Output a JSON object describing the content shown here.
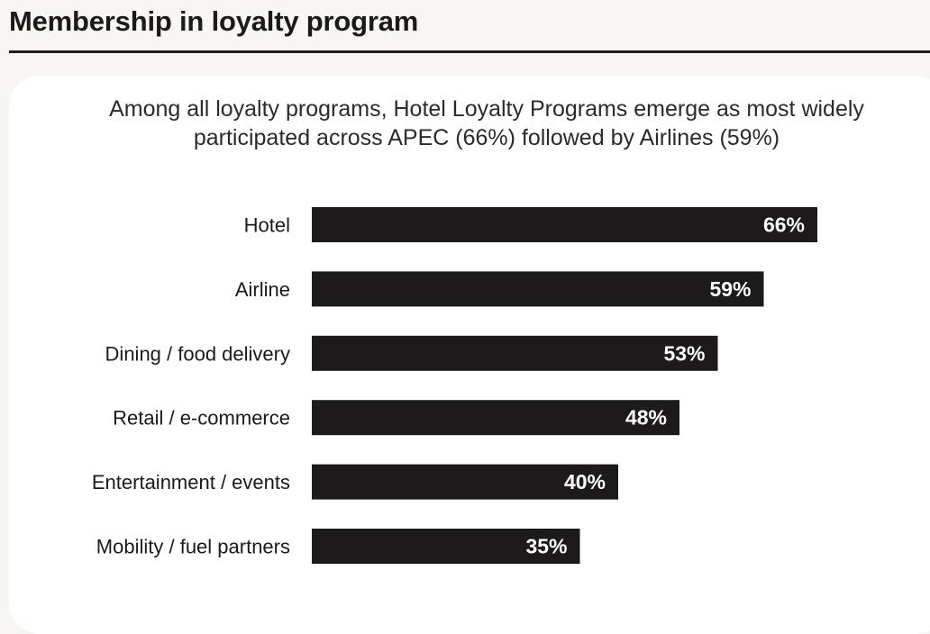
{
  "header": {
    "title": "Membership in loyalty program"
  },
  "chart_data": {
    "type": "bar",
    "orientation": "horizontal",
    "subtitle_lines": [
      "Among all loyalty programs, Hotel Loyalty Programs emerge as most widely",
      "participated across APEC (66%) followed by Airlines (59%)"
    ],
    "categories": [
      "Hotel",
      "Airline",
      "Dining / food delivery",
      "Retail / e-commerce",
      "Entertainment / events",
      "Mobility / fuel partners"
    ],
    "values": [
      66,
      59,
      53,
      48,
      40,
      35
    ],
    "value_labels": [
      "66%",
      "59%",
      "53%",
      "48%",
      "40%",
      "35%"
    ],
    "bar_color": "#1c1a1a",
    "label_color": "#ffffff",
    "grid": false,
    "legend": "none"
  }
}
